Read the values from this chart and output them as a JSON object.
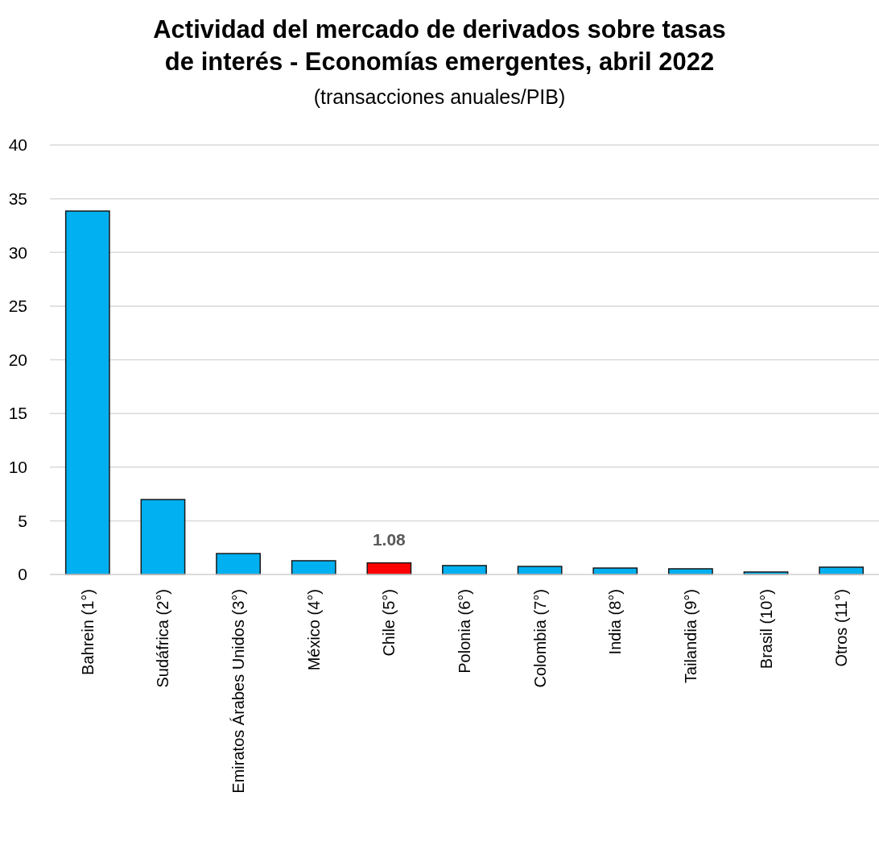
{
  "chart_data": {
    "type": "bar",
    "title": "Actividad del mercado de derivados sobre tasas de interés - Economías emergentes, abril 2022",
    "subtitle": "(transacciones anuales/PIB)",
    "categories": [
      "Bahrein (1°)",
      "Sudáfrica (2°)",
      "Emiratos Árabes Unidos (3°)",
      "México (4°)",
      "Chile (5°)",
      "Polonia (6°)",
      "Colombia (7°)",
      "India (8°)",
      "Tailandia (9°)",
      "Brasil (10°)",
      "Otros (11°)"
    ],
    "values": [
      33.85,
      6.98,
      1.95,
      1.28,
      1.08,
      0.83,
      0.75,
      0.6,
      0.53,
      0.23,
      0.68
    ],
    "colors": [
      "#00b0f0",
      "#00b0f0",
      "#00b0f0",
      "#00b0f0",
      "#ff0000",
      "#00b0f0",
      "#00b0f0",
      "#00b0f0",
      "#00b0f0",
      "#00b0f0",
      "#00b0f0"
    ],
    "value_labels": [
      null,
      null,
      null,
      null,
      "1.08",
      null,
      null,
      null,
      null,
      null,
      null
    ],
    "ylim": [
      0,
      40
    ],
    "yticks": [
      0,
      5,
      10,
      15,
      20,
      25,
      30,
      35,
      40
    ],
    "grid": "y"
  }
}
